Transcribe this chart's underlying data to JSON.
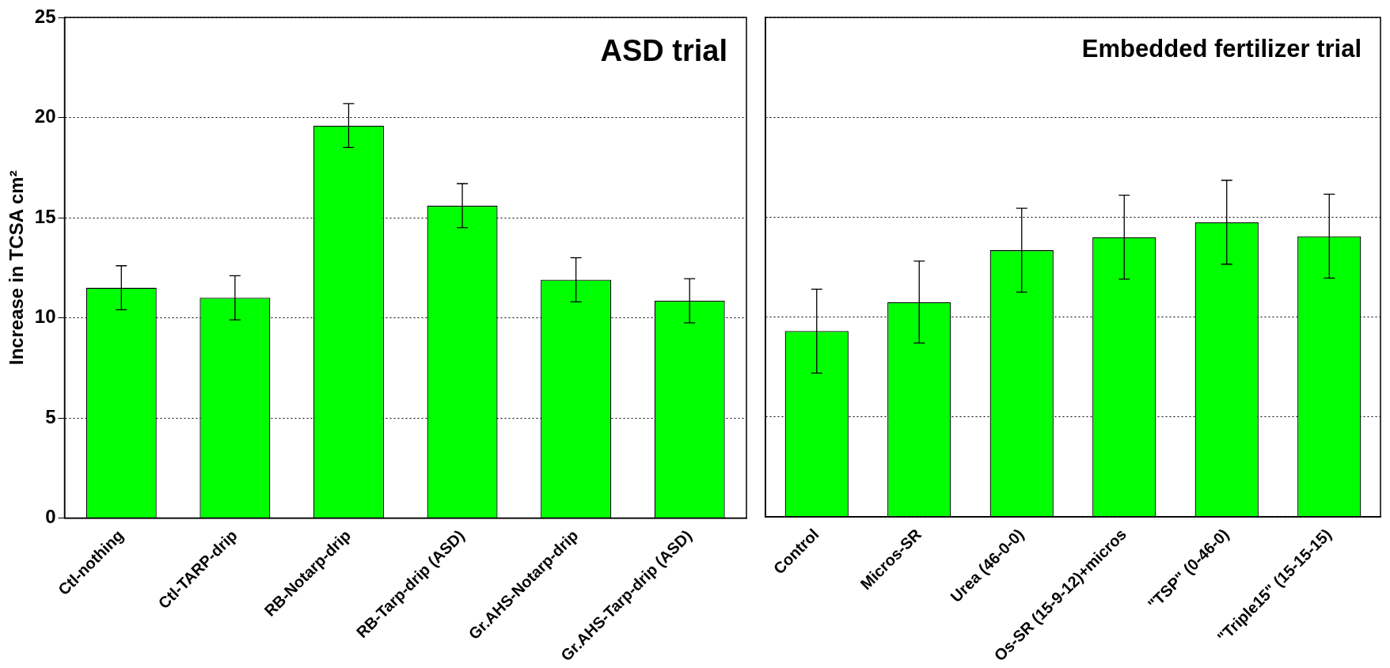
{
  "chart_data": [
    {
      "type": "bar",
      "title": "ASD trial",
      "ylabel": "Increase in TCSA cm²",
      "categories": [
        "Ctl-nothing",
        "Ctl-TARP-drip",
        "RB-Notarp-drip",
        "RB-Tarp-drip (ASD)",
        "Gr.AHS-Notarp-drip",
        "Gr.AHS-Tarp-drip (ASD)"
      ],
      "values": [
        11.5,
        11.0,
        19.6,
        15.6,
        11.9,
        10.85
      ],
      "errors": [
        1.1,
        1.1,
        1.1,
        1.1,
        1.1,
        1.1
      ],
      "color": "#00ff00",
      "ylim": [
        0,
        25
      ],
      "yticks": [
        0,
        5,
        10,
        15,
        20,
        25
      ],
      "grid": "y"
    },
    {
      "type": "bar",
      "title": "Embedded fertilizer trial",
      "categories": [
        "Control",
        "Micros-SR",
        "Urea (46-0-0)",
        "Os-SR (15-9-12)+micros",
        "\"TSP\" (0-46-0)",
        "\"Triple15\" (15-15-15)"
      ],
      "values": [
        9.3,
        10.75,
        13.35,
        14.0,
        14.75,
        14.05
      ],
      "errors": [
        2.1,
        2.05,
        2.1,
        2.1,
        2.1,
        2.1
      ],
      "color": "#00ff00",
      "ylim": [
        0,
        25
      ],
      "yticks": [
        0,
        5,
        10,
        15,
        20,
        25
      ],
      "grid": "y",
      "tick_labels": "x"
    }
  ]
}
